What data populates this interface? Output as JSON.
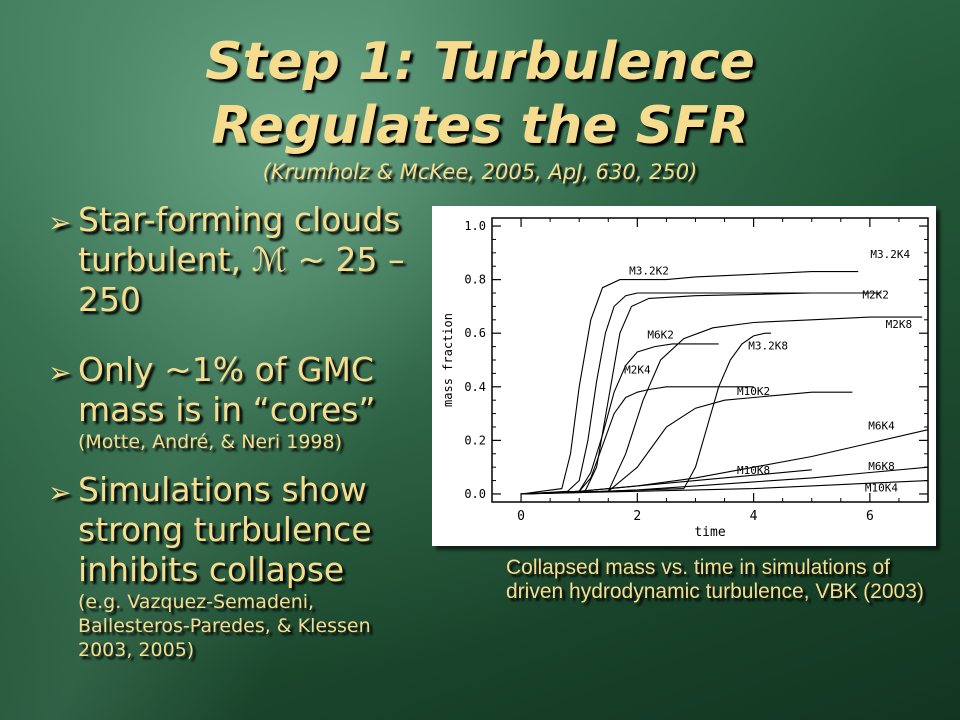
{
  "slide": {
    "title_line1": "Step 1: Turbulence",
    "title_line2": "Regulates the SFR",
    "citation": "(Krumholz & McKee, 2005, ApJ, 630, 250)"
  },
  "bullets": [
    {
      "arrow": "➢",
      "main": "Star-forming clouds turbulent, ℳ ~ 25 – 250",
      "sub": ""
    },
    {
      "arrow": "➢",
      "main": "Only ~1% of GMC mass is in “cores”",
      "sub": "(Motte, André, & Neri 1998)"
    },
    {
      "arrow": "➢",
      "main": "Simulations show strong turbulence inhibits collapse",
      "sub": "(e.g. Vazquez-Semadeni, Ballesteros-Paredes, & Klessen 2003, 2005)"
    }
  ],
  "caption": "Collapsed mass vs. time in simulations of driven hydrodynamic turbulence, VBK (2003)",
  "colors": {
    "text": "#f6dc8f",
    "shadow": "#000000",
    "background": "#245a3a",
    "plot_ink": "#000000"
  },
  "chart_data": {
    "type": "line",
    "xlabel": "time",
    "ylabel": "mass fraction",
    "xlim": [
      -0.5,
      7.0
    ],
    "ylim": [
      -0.03,
      1.03
    ],
    "xticks": [
      "0",
      "2",
      "4",
      "6"
    ],
    "yticks": [
      "0.0",
      "0.2",
      "0.4",
      "0.6",
      "0.8",
      "1.0"
    ],
    "series": [
      {
        "name": "M3.2K2",
        "x": [
          0,
          0.8,
          1.0,
          1.15,
          1.3,
          1.45,
          1.6,
          1.8,
          2.0,
          2.5,
          3.5,
          4.5,
          5.5,
          6.0
        ],
        "y": [
          0,
          0.01,
          0.05,
          0.2,
          0.42,
          0.6,
          0.7,
          0.74,
          0.75,
          0.75,
          0.75,
          0.75,
          0.75,
          0.75
        ]
      },
      {
        "name": "M3.2K4",
        "x": [
          0,
          0.7,
          0.85,
          1.0,
          1.2,
          1.4,
          1.7,
          2.0,
          2.5,
          3.0,
          4.0,
          5.0,
          5.8
        ],
        "y": [
          0,
          0.02,
          0.15,
          0.4,
          0.65,
          0.77,
          0.8,
          0.8,
          0.8,
          0.81,
          0.82,
          0.83,
          0.83
        ]
      },
      {
        "name": "M2K2",
        "x": [
          0,
          1.1,
          1.3,
          1.5,
          1.7,
          1.9,
          2.2,
          3.0,
          4.0,
          5.0,
          6.0,
          6.2
        ],
        "y": [
          0,
          0.01,
          0.1,
          0.35,
          0.6,
          0.7,
          0.73,
          0.74,
          0.745,
          0.75,
          0.75,
          0.75
        ]
      },
      {
        "name": "M2K8",
        "x": [
          0,
          1.5,
          1.8,
          2.1,
          2.4,
          2.8,
          3.3,
          4.0,
          5.0,
          6.0,
          6.9
        ],
        "y": [
          0,
          0.01,
          0.15,
          0.35,
          0.5,
          0.58,
          0.62,
          0.64,
          0.65,
          0.66,
          0.66
        ]
      },
      {
        "name": "M3.2K8",
        "x": [
          0,
          2.8,
          3.0,
          3.2,
          3.4,
          3.6,
          3.8,
          4.0,
          4.2,
          4.3
        ],
        "y": [
          0,
          0.02,
          0.1,
          0.25,
          0.4,
          0.5,
          0.56,
          0.59,
          0.6,
          0.6
        ]
      },
      {
        "name": "M6K2",
        "x": [
          0,
          1.0,
          1.2,
          1.4,
          1.6,
          1.8,
          2.0,
          2.3,
          2.6,
          3.0,
          3.4
        ],
        "y": [
          0,
          0.01,
          0.08,
          0.22,
          0.38,
          0.48,
          0.53,
          0.55,
          0.56,
          0.56,
          0.56
        ]
      },
      {
        "name": "M2K4",
        "x": [
          0,
          1.0,
          1.2,
          1.4,
          1.6,
          1.8,
          2.0,
          2.2,
          2.5,
          3.0,
          3.5,
          4.0
        ],
        "y": [
          0,
          0.01,
          0.06,
          0.18,
          0.3,
          0.36,
          0.38,
          0.39,
          0.4,
          0.4,
          0.4,
          0.4
        ]
      },
      {
        "name": "M10K2",
        "x": [
          0,
          1.5,
          2.0,
          2.5,
          3.0,
          3.5,
          4.0,
          4.5,
          5.0,
          5.5,
          5.7
        ],
        "y": [
          0,
          0.01,
          0.1,
          0.25,
          0.32,
          0.35,
          0.36,
          0.37,
          0.38,
          0.38,
          0.38
        ]
      },
      {
        "name": "M6K4",
        "x": [
          0,
          1.0,
          2.0,
          3.0,
          4.0,
          5.0,
          6.0,
          7.0
        ],
        "y": [
          0,
          0.01,
          0.03,
          0.06,
          0.1,
          0.14,
          0.19,
          0.24
        ]
      },
      {
        "name": "M10K8",
        "x": [
          0,
          1.0,
          2.0,
          3.0,
          4.0,
          5.0
        ],
        "y": [
          0,
          0.01,
          0.03,
          0.05,
          0.07,
          0.09
        ]
      },
      {
        "name": "M6K8",
        "x": [
          0,
          1.0,
          2.0,
          3.0,
          4.0,
          5.0,
          6.0,
          7.0
        ],
        "y": [
          0,
          0.005,
          0.015,
          0.03,
          0.045,
          0.06,
          0.08,
          0.1
        ]
      },
      {
        "name": "M10K4",
        "x": [
          0,
          1.0,
          2.0,
          3.0,
          4.0,
          5.0,
          6.0,
          7.0
        ],
        "y": [
          0,
          0.005,
          0.01,
          0.015,
          0.02,
          0.03,
          0.04,
          0.05
        ]
      }
    ],
    "annotations": [
      {
        "text": "M3.2K2",
        "x": 2.2,
        "y": 0.82
      },
      {
        "text": "M3.2K4",
        "x": 6.35,
        "y": 0.88
      },
      {
        "text": "M2K2",
        "x": 6.1,
        "y": 0.73
      },
      {
        "text": "M2K8",
        "x": 6.5,
        "y": 0.62
      },
      {
        "text": "M6K2",
        "x": 2.4,
        "y": 0.58
      },
      {
        "text": "M3.2K8",
        "x": 4.25,
        "y": 0.54
      },
      {
        "text": "M2K4",
        "x": 2.0,
        "y": 0.45
      },
      {
        "text": "M10K2",
        "x": 4.0,
        "y": 0.37
      },
      {
        "text": "M6K4",
        "x": 6.2,
        "y": 0.24
      },
      {
        "text": "M6K8",
        "x": 6.2,
        "y": 0.09
      },
      {
        "text": "M10K8",
        "x": 4.0,
        "y": 0.075
      },
      {
        "text": "M10K4",
        "x": 6.2,
        "y": 0.01
      }
    ],
    "grid": false,
    "legend": "none"
  }
}
